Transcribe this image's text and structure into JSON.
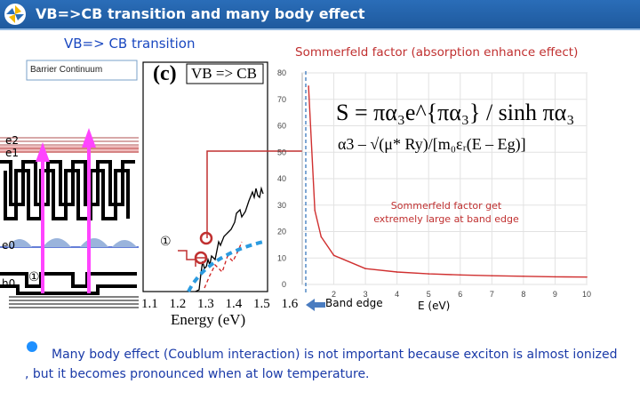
{
  "header": {
    "title": "VB=>CB transition and many body effect"
  },
  "left_panel": {
    "subtitle": "VB=> CB  transition",
    "barrier_label": "Barrier Continuum",
    "levels": {
      "e2": "e2",
      "e1": "e1",
      "e0": "e0",
      "h0": "h0"
    },
    "markers": {
      "one": "①"
    }
  },
  "spectrum_panel": {
    "panel_label": "(c)",
    "legend_label": "VB => CB",
    "x_ticks": [
      "1.1",
      "1.2",
      "1.3",
      "1.4",
      "1.5",
      "1.6"
    ],
    "xlabel": "Energy (eV)"
  },
  "sommerfeld_plot": {
    "title": "Sommerfeld factor (absorption enhance effect)",
    "formula_main": "S = πα₃e^{πα₃} / sinh πα₃",
    "formula_sub": "α3 – √(μ* Ry)/[m₀εᵣ(E – Eg)]",
    "annotation": "Sommerfeld factor get extremely large at band edge",
    "band_edge_label": "Band edge",
    "x_label": "E (eV)"
  },
  "chart_data": {
    "type": "line",
    "x": [
      1.2,
      1.4,
      1.6,
      2,
      3,
      4,
      5,
      6,
      7,
      8,
      9,
      10
    ],
    "y": [
      75,
      28,
      18,
      11,
      6,
      4.7,
      4,
      3.6,
      3.3,
      3.1,
      2.9,
      2.8
    ],
    "xlim": [
      1,
      10
    ],
    "ylim": [
      0,
      80
    ],
    "x_ticks": [
      "2",
      "3",
      "4",
      "5",
      "6",
      "7",
      "8",
      "9",
      "10"
    ],
    "y_ticks": [
      "0",
      "10",
      "20",
      "30",
      "40",
      "50",
      "60",
      "70",
      "80"
    ],
    "xlabel": "E (eV)",
    "ylabel": "",
    "grid": true,
    "line_color": "#d03030"
  },
  "note": {
    "text": "Many body effect (Coublum interaction) is not important because exciton is almost ionized , but it becomes pronounced when at low temperature."
  },
  "colors": {
    "header_bg": "#2a6db8",
    "title_blue": "#1a48c0",
    "accent_red": "#c03030",
    "arrow_pink": "#ff44ff",
    "dashed_blue": "#2b9be0"
  }
}
